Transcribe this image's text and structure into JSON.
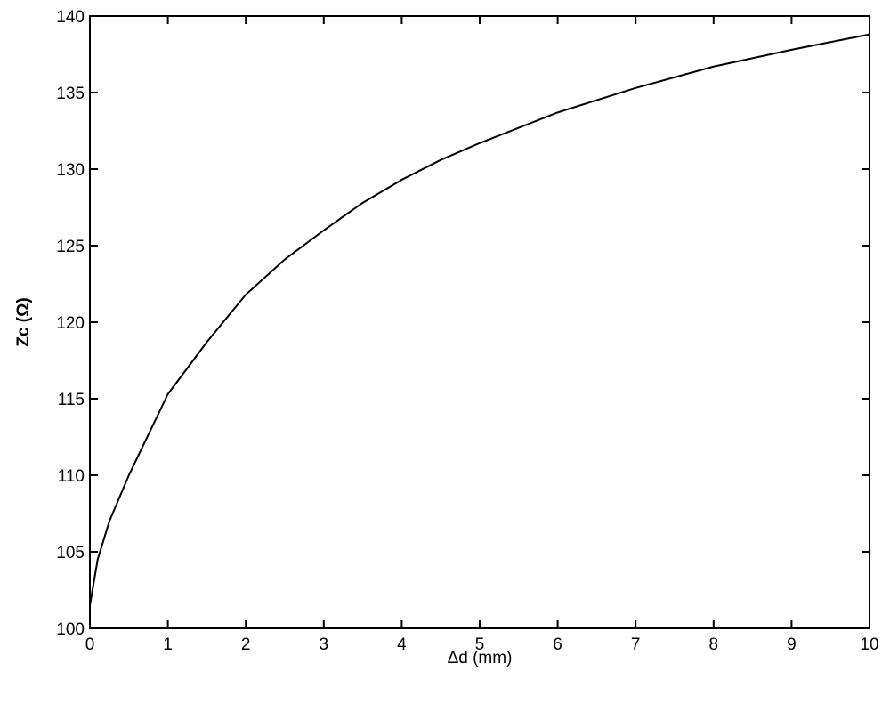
{
  "chart_data": {
    "type": "line",
    "x_label": "Δd (mm)",
    "y_label": "Zc (Ω)",
    "x": [
      0,
      0.1,
      0.25,
      0.5,
      1,
      1.5,
      2,
      2.5,
      3,
      3.5,
      4,
      4.5,
      5,
      6,
      7,
      8,
      9,
      10
    ],
    "series": [
      {
        "color": "#000000",
        "values": [
          101.5,
          104.5,
          107,
          110,
          115.3,
          118.7,
          121.8,
          124.1,
          126,
          127.8,
          129.3,
          130.6,
          131.7,
          133.7,
          135.3,
          136.7,
          137.8,
          138.8
        ]
      }
    ],
    "xlim": [
      0,
      10
    ],
    "ylim": [
      100,
      140
    ],
    "xticks": [
      0,
      1,
      2,
      3,
      4,
      5,
      6,
      7,
      8,
      9,
      10
    ],
    "yticks": [
      100,
      105,
      110,
      115,
      120,
      125,
      130,
      135,
      140
    ],
    "grid": false
  }
}
